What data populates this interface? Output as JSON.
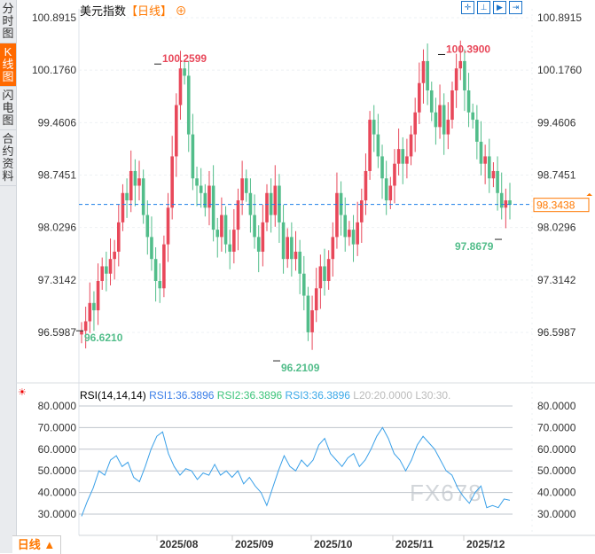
{
  "sidebar": {
    "tabs": [
      {
        "label": [
          "分",
          "时",
          "图"
        ]
      },
      {
        "label": [
          "K",
          "线",
          "图"
        ],
        "active": true
      },
      {
        "label": [
          "闪",
          "电",
          "图"
        ]
      },
      {
        "label": [
          "合",
          "约",
          "资",
          "料"
        ]
      }
    ]
  },
  "header": {
    "title": "美元指数",
    "period": "【日线】",
    "icon": "crosshair-circle-icon",
    "tools": [
      "crosshair-icon",
      "zoom-fit-icon",
      "play-icon",
      "exit-icon"
    ]
  },
  "bottom_tab": {
    "label": "日线 ▲"
  },
  "watermark": "FX678",
  "colors": {
    "up": "#e8485a",
    "down": "#52bd8a",
    "last_price": "#ff7800",
    "rsi_line": "#3aa0e8"
  },
  "chart_data": [
    {
      "type": "candlestick",
      "title": "美元指数",
      "ylim": [
        96.21,
        100.8915
      ],
      "yticks": [
        "100.8915",
        "100.1760",
        "99.4606",
        "98.7451",
        "98.0296",
        "97.3142",
        "96.5987"
      ],
      "ytick_values": [
        100.8915,
        100.176,
        99.4606,
        98.7451,
        98.0296,
        97.3142,
        96.5987
      ],
      "xticks": [
        "2025/08",
        "2025/09",
        "2025/10",
        "2025/11",
        "2025/12"
      ],
      "last_price": "98.3438",
      "last_value": 98.3438,
      "annotations": [
        {
          "label": "100.2599",
          "value": 100.2599
        },
        {
          "label": "96.6210",
          "value": 96.621
        },
        {
          "label": "96.2109",
          "value": 96.2109
        },
        {
          "label": "100.3900",
          "value": 100.39
        },
        {
          "label": "97.8679",
          "value": 97.8679
        }
      ],
      "closes": [
        96.62,
        96.75,
        97.0,
        96.9,
        97.3,
        97.5,
        97.4,
        97.6,
        97.7,
        98.1,
        98.5,
        98.4,
        98.8,
        98.6,
        98.7,
        98.2,
        97.9,
        97.6,
        97.3,
        97.2,
        97.8,
        98.3,
        99.0,
        99.7,
        100.2,
        100.1,
        99.3,
        98.7,
        98.6,
        98.5,
        98.3,
        98.6,
        98.0,
        97.9,
        98.2,
        97.8,
        97.7,
        98.0,
        98.4,
        98.7,
        98.5,
        98.2,
        97.9,
        97.7,
        98.1,
        98.5,
        98.2,
        98.6,
        98.1,
        97.6,
        97.9,
        97.6,
        97.7,
        97.4,
        97.1,
        96.6,
        96.9,
        97.2,
        97.5,
        97.3,
        97.6,
        97.9,
        98.5,
        98.2,
        97.9,
        98.0,
        97.8,
        98.1,
        98.4,
        98.8,
        99.5,
        99.3,
        99.0,
        98.7,
        98.4,
        98.6,
        98.9,
        99.1,
        98.9,
        99.0,
        99.3,
        99.6,
        100.0,
        100.3,
        99.9,
        99.6,
        99.4,
        99.7,
        99.3,
        99.5,
        99.9,
        100.2,
        100.3,
        99.9,
        99.6,
        99.5,
        99.2,
        98.9,
        99.0,
        98.7,
        98.8,
        98.5,
        98.3,
        98.4,
        98.34
      ]
    },
    {
      "type": "line",
      "title": "RSI(14,14,14)",
      "ylim": [
        30,
        80
      ],
      "legend": [
        {
          "label": "RSI1:36.3896",
          "color": "#3a7ee8"
        },
        {
          "label": "RSI2:36.3896",
          "color": "#3cc47a"
        },
        {
          "label": "RSI3:36.3896",
          "color": "#3aa8e8"
        },
        {
          "label": "L20:20.0000",
          "color": "#bbbbbb"
        },
        {
          "label": "L30:30.",
          "color": "#bbbbbb"
        }
      ],
      "yticks": [
        "80.0000",
        "70.0000",
        "60.0000",
        "50.0000",
        "40.0000",
        "30.0000"
      ],
      "ytick_values": [
        80,
        70,
        60,
        50,
        40,
        30
      ],
      "values": [
        29,
        36,
        42,
        50,
        48,
        55,
        57,
        52,
        54,
        47,
        45,
        52,
        60,
        66,
        68,
        58,
        52,
        48,
        51,
        50,
        46,
        49,
        48,
        53,
        48,
        50,
        47,
        50,
        44,
        47,
        43,
        40,
        34,
        42,
        50,
        57,
        52,
        50,
        55,
        52,
        55,
        62,
        65,
        58,
        55,
        52,
        56,
        58,
        52,
        55,
        60,
        66,
        70,
        65,
        58,
        55,
        50,
        55,
        62,
        66,
        63,
        60,
        55,
        50,
        48,
        42,
        38,
        35,
        40,
        43,
        33,
        34,
        33,
        37,
        36.39
      ]
    }
  ]
}
